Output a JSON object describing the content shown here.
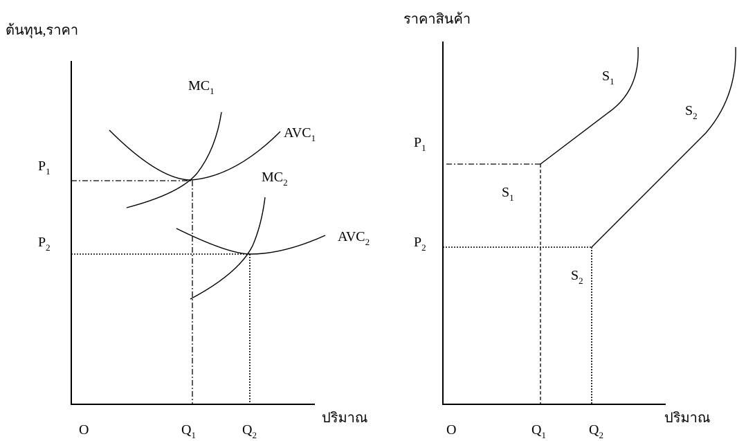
{
  "left": {
    "y_axis_label": "ต้นทุน,ราคา",
    "x_axis_label": "ปริมาณ",
    "origin": "O",
    "curves": [
      {
        "name": "MC",
        "sub": "1"
      },
      {
        "name": "AVC",
        "sub": "1"
      },
      {
        "name": "MC",
        "sub": "2"
      },
      {
        "name": "AVC",
        "sub": "2"
      }
    ],
    "price_labels": [
      {
        "name": "P",
        "sub": "1"
      },
      {
        "name": "P",
        "sub": "2"
      }
    ],
    "quantity_labels": [
      {
        "name": "Q",
        "sub": "1"
      },
      {
        "name": "Q",
        "sub": "2"
      }
    ]
  },
  "right": {
    "y_axis_label": "ราคาสินค้า",
    "x_axis_label": "ปริมาณ",
    "origin": "O",
    "curves": [
      {
        "name": "S",
        "sub": "1"
      },
      {
        "name": "S",
        "sub": "2"
      }
    ],
    "region_labels": [
      {
        "name": "S",
        "sub": "1"
      },
      {
        "name": "S",
        "sub": "2"
      }
    ],
    "price_labels": [
      {
        "name": "P",
        "sub": "1"
      },
      {
        "name": "P",
        "sub": "2"
      }
    ],
    "quantity_labels": [
      {
        "name": "Q",
        "sub": "1"
      },
      {
        "name": "Q",
        "sub": "2"
      }
    ]
  }
}
